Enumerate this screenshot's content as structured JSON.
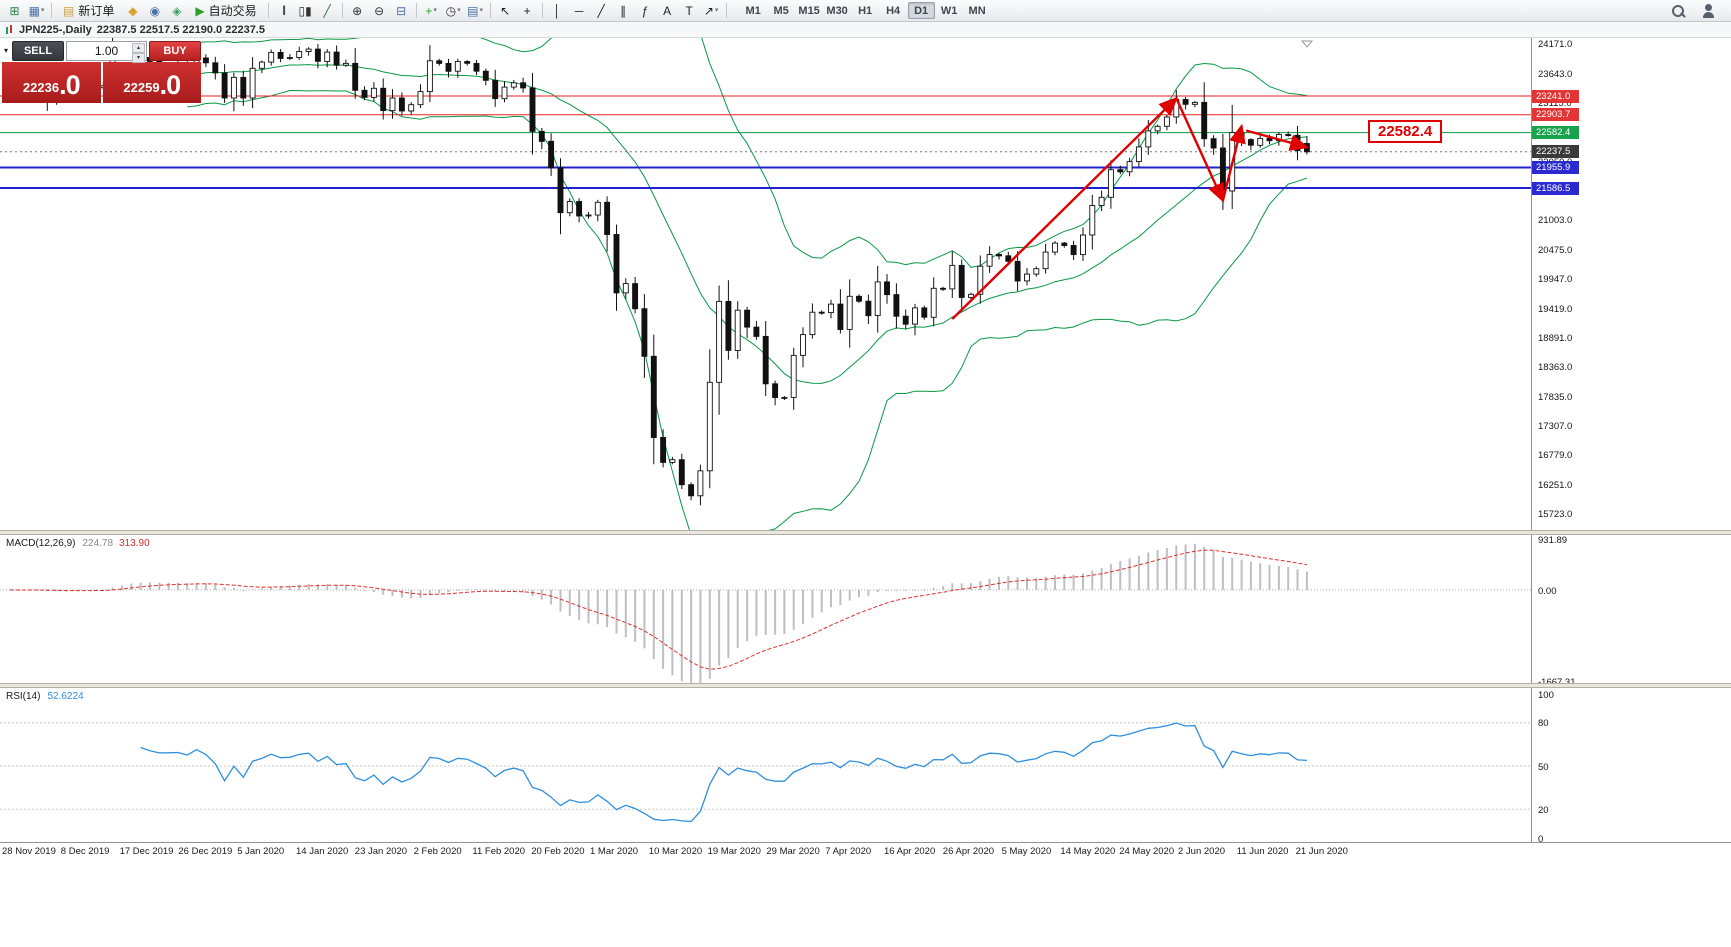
{
  "ui": {
    "dropdown_caret": "▾",
    "spin_up": "▴",
    "spin_down": "▾",
    "collapse_glyph": "▾"
  },
  "toolbar": {
    "items": [
      {
        "type": "icon",
        "name": "new-chart-icon",
        "glyph": "⊞",
        "color": "#2e7d46"
      },
      {
        "type": "icon",
        "name": "profiles-icon",
        "glyph": "▦",
        "color": "#4a6fa5",
        "dropdown": true
      },
      {
        "type": "sep"
      },
      {
        "type": "button",
        "name": "new-order-button",
        "label": "新订单",
        "glyph": "▤",
        "glyph_color": "#caa23a"
      },
      {
        "type": "icon",
        "name": "metaeditor-icon",
        "glyph": "◆",
        "color": "#d9a430"
      },
      {
        "type": "icon",
        "name": "options-icon",
        "glyph": "◉",
        "color": "#4a6fa5"
      },
      {
        "type": "icon",
        "name": "market-icon",
        "glyph": "◈",
        "color": "#3aa063"
      },
      {
        "type": "button",
        "name": "autotrading-button",
        "label": "自动交易",
        "glyph": "▶",
        "glyph_color": "#2ca02c"
      },
      {
        "type": "sep"
      },
      {
        "type": "icon",
        "name": "bar-chart-mode-icon",
        "glyph": "|||",
        "color": "#444"
      },
      {
        "type": "icon",
        "name": "candlestick-mode-icon",
        "glyph": "▯▮",
        "color": "#333"
      },
      {
        "type": "icon",
        "name": "line-chart-mode-icon",
        "glyph": "╱",
        "color": "#3a6f3a"
      },
      {
        "type": "sep"
      },
      {
        "type": "icon",
        "name": "zoom-in-icon",
        "glyph": "⊕",
        "color": "#333"
      },
      {
        "type": "icon",
        "name": "zoom-out-icon",
        "glyph": "⊖",
        "color": "#333"
      },
      {
        "type": "icon",
        "name": "tile-windows-icon",
        "glyph": "⊟",
        "color": "#4a6fa5"
      },
      {
        "type": "sep"
      },
      {
        "type": "icon",
        "name": "indicators-icon",
        "glyph": "+",
        "color": "#2ca02c",
        "dropdown": true
      },
      {
        "type": "icon",
        "name": "periods-icon",
        "glyph": "◷",
        "color": "#333",
        "dropdown": true
      },
      {
        "type": "icon",
        "name": "templates-icon",
        "glyph": "▤",
        "color": "#4a6fa5",
        "dropdown": true
      },
      {
        "type": "sep"
      },
      {
        "type": "icon",
        "name": "cursor-icon",
        "glyph": "↖",
        "color": "#222"
      },
      {
        "type": "icon",
        "name": "crosshair-icon",
        "glyph": "+",
        "color": "#222"
      },
      {
        "type": "sep"
      },
      {
        "type": "icon",
        "name": "vertical-line-icon",
        "glyph": "│",
        "color": "#222"
      },
      {
        "type": "icon",
        "name": "horizontal-line-icon",
        "glyph": "─",
        "color": "#222"
      },
      {
        "type": "icon",
        "name": "trendline-icon",
        "glyph": "╱",
        "color": "#222"
      },
      {
        "type": "icon",
        "name": "equidistant-channel-icon",
        "glyph": "∥",
        "color": "#222"
      },
      {
        "type": "icon",
        "name": "fibonacci-icon",
        "glyph": "ƒ",
        "color": "#222"
      },
      {
        "type": "icon",
        "name": "text-tool-icon",
        "glyph": "A",
        "color": "#222"
      },
      {
        "type": "icon",
        "name": "label-tool-icon",
        "glyph": "T",
        "color": "#222"
      },
      {
        "type": "icon",
        "name": "arrows-tool-icon",
        "glyph": "↗",
        "color": "#222",
        "dropdown": true
      },
      {
        "type": "sep"
      }
    ],
    "timeframes": [
      "M1",
      "M5",
      "M15",
      "M30",
      "H1",
      "H4",
      "D1",
      "W1",
      "MN"
    ],
    "active_timeframe": "D1",
    "right_icons": [
      {
        "name": "search-icon",
        "icon": "search"
      },
      {
        "name": "community-icon",
        "icon": "person"
      }
    ]
  },
  "window": {
    "symbol_period": "JPN225-,Daily",
    "ohlc": "22387.5 22517.5 22190.0 22237.5"
  },
  "trade_panel": {
    "sell_label": "SELL",
    "buy_label": "BUY",
    "lot": "1.00",
    "sell_price": "22236",
    "sell_price_big": ".0",
    "buy_price": "22259",
    "buy_price_big": ".0"
  },
  "chart_data": {
    "type": "candlestick",
    "symbol": "JPN225-",
    "period": "Daily",
    "ohlc_current": {
      "open": 22387.5,
      "high": 22517.5,
      "low": 22190.0,
      "close": 22237.5
    },
    "current_price": 22237.5,
    "candle_up_color": "#ffffff",
    "candle_down_color": "#111111",
    "candle_outline": "#111111",
    "annotation_color": "#e00000",
    "closes": [
      23410,
      23290,
      23530,
      23380,
      23135,
      23300,
      23350,
      23430,
      23410,
      23390,
      23425,
      24023,
      23952,
      24066,
      23934,
      23864,
      23817,
      23821,
      23830,
      23783,
      23925,
      23838,
      23657,
      23205,
      23575,
      23205,
      23740,
      23851,
      24025,
      23917,
      23933,
      24041,
      24084,
      23864,
      24031,
      23795,
      23827,
      23344,
      23216,
      23379,
      22978,
      23205,
      22972,
      23085,
      23320,
      23874,
      23828,
      23686,
      23861,
      23828,
      23687,
      23523,
      23193,
      23401,
      23479,
      23387,
      22605,
      22426,
      21948,
      21143,
      21344,
      21083,
      21100,
      21329,
      20750,
      19699,
      19867,
      19416,
      18560,
      17100,
      16650,
      16700,
      16250,
      16050,
      16500,
      18092,
      19547,
      18665,
      19389,
      19085,
      18917,
      18065,
      17819,
      17820,
      18576,
      18950,
      19353,
      19346,
      19499,
      19043,
      19639,
      19551,
      19290,
      19897,
      19669,
      19281,
      19138,
      19429,
      19262,
      19783,
      19771,
      20194,
      19619,
      19675,
      20180,
      20391,
      20366,
      20267,
      19915,
      20037,
      20134,
      20433,
      20595,
      20552,
      20388,
      20741,
      21271,
      21419,
      21916,
      21878,
      22062,
      22326,
      22614,
      22696,
      22864,
      23178,
      23091,
      23125,
      22473,
      22305,
      21531,
      22582,
      22456,
      22355,
      22479,
      22437,
      22549,
      22534,
      22260,
      22237.5
    ],
    "overlays": {
      "bollinger": {
        "period": 20,
        "deviation": 2,
        "color": "#089944"
      }
    },
    "hlines": [
      {
        "price": 23241.0,
        "color": "#ee2222",
        "width": 1
      },
      {
        "price": 22903.7,
        "color": "#ee2222",
        "width": 1
      },
      {
        "price": 22582.4,
        "color": "#089944",
        "width": 1
      },
      {
        "price": 21955.9,
        "color": "#2222cc",
        "width": 2
      },
      {
        "price": 21586.5,
        "color": "#2222cc",
        "width": 2
      }
    ]
  },
  "price_axis": {
    "ticks": [
      24171,
      23643,
      23115,
      22587,
      22059,
      21531,
      21003,
      20475,
      19947,
      19419,
      18891,
      18363,
      17835,
      17307,
      16779,
      16251,
      15723
    ],
    "tags": [
      {
        "price": 23241.0,
        "text": "23241.0",
        "color": "#e23535"
      },
      {
        "price": 22903.7,
        "text": "22903.7",
        "color": "#e23535"
      },
      {
        "price": 22582.4,
        "text": "22582.4",
        "color": "#18a24c"
      },
      {
        "price": 22237.5,
        "text": "22237.5",
        "color": "#3a3a3a"
      },
      {
        "price": 21955.9,
        "text": "21955.9",
        "color": "#2a2ad0"
      },
      {
        "price": 21586.5,
        "text": "21586.5",
        "color": "#2a2ad0"
      }
    ]
  },
  "time_axis": {
    "labels": [
      "28 Nov 2019",
      "8 Dec 2019",
      "17 Dec 2019",
      "26 Dec 2019",
      "5 Jan 2020",
      "14 Jan 2020",
      "23 Jan 2020",
      "2 Feb 2020",
      "11 Feb 2020",
      "20 Feb 2020",
      "1 Mar 2020",
      "10 Mar 2020",
      "19 Mar 2020",
      "29 Mar 2020",
      "7 Apr 2020",
      "16 Apr 2020",
      "26 Apr 2020",
      "5 May 2020",
      "14 May 2020",
      "24 May 2020",
      "2 Jun 2020",
      "11 Jun 2020",
      "21 Jun 2020"
    ]
  },
  "macd": {
    "label": "MACD(12,26,9)",
    "fast": 12,
    "slow": 26,
    "signal_period": 9,
    "main_value": "224.78",
    "signal_value": "313.90",
    "scale": [
      931.89,
      0,
      -1667.31
    ],
    "histogram_color": "#bfbfbf",
    "signal_color": "#e03030"
  },
  "rsi": {
    "label": "RSI(14)",
    "period": 14,
    "value": "52.6224",
    "scale": [
      100,
      80,
      50,
      20,
      0
    ],
    "levels": [
      80,
      50,
      20
    ],
    "color": "#2f8fde"
  },
  "annotations": {
    "price_label": {
      "text": "22582.4",
      "color": "#e00000"
    },
    "trend_arrows": [
      {
        "from": [
          101,
          19230
        ],
        "to": [
          125,
          23200
        ]
      },
      {
        "from": [
          125,
          23200
        ],
        "to": [
          130,
          21360
        ]
      },
      {
        "from": [
          130,
          21360
        ],
        "to": [
          132,
          22700
        ]
      },
      {
        "from": [
          132.5,
          22620
        ],
        "to": [
          139,
          22320
        ]
      }
    ]
  }
}
